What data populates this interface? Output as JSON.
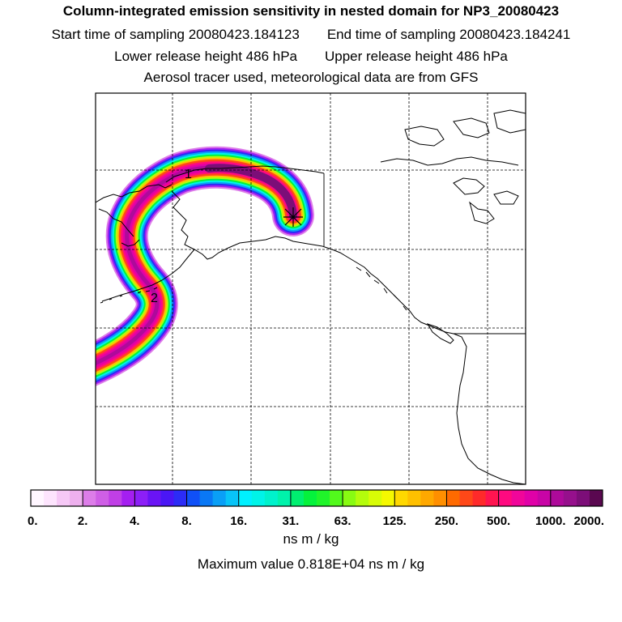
{
  "header": {
    "title": "Column-integrated emission sensitivity in nested domain for NP3_20080423",
    "start_label": "Start time of sampling 20080423.184123",
    "end_label": "End time of sampling 20080423.184241",
    "lower_label": "Lower release height  486 hPa",
    "upper_label": "Upper release height  486 hPa",
    "tracer_label": "Aerosol tracer used, meteorological data are from GFS"
  },
  "map": {
    "markers": [
      {
        "label": "1"
      },
      {
        "label": "2"
      }
    ]
  },
  "colorbar": {
    "tick_labels": [
      "0.",
      "2.",
      "4.",
      "8.",
      "16.",
      "31.",
      "63.",
      "125.",
      "250.",
      "500.",
      "1000.",
      "2000."
    ],
    "colors": [
      "#fff6ff",
      "#fde4fd",
      "#f6c8f6",
      "#eeb0ee",
      "#dd7de9",
      "#cf5fe6",
      "#c03fe6",
      "#a41ff0",
      "#8c1ff7",
      "#6a14f5",
      "#4a16f5",
      "#2c2cf6",
      "#1050f7",
      "#0a78f5",
      "#0a9ff6",
      "#08c4f7",
      "#00f0ff",
      "#00f4e8",
      "#00f2cc",
      "#00f3ab",
      "#00f070",
      "#05f23c",
      "#20f42a",
      "#52f91c",
      "#88fb12",
      "#b4fc0c",
      "#d8fc06",
      "#f5f800",
      "#ffd800",
      "#ffc000",
      "#ffa800",
      "#ff8f00",
      "#ff6a00",
      "#ff4818",
      "#ff2a2a",
      "#ff1450",
      "#ff0a80",
      "#f0069a",
      "#e001a8",
      "#c804a6",
      "#ae0a9a",
      "#96108c",
      "#7c0e78",
      "#5a0850"
    ],
    "units": "ns m / kg",
    "max_value": "Maximum value  0.818E+04 ns m / kg"
  }
}
